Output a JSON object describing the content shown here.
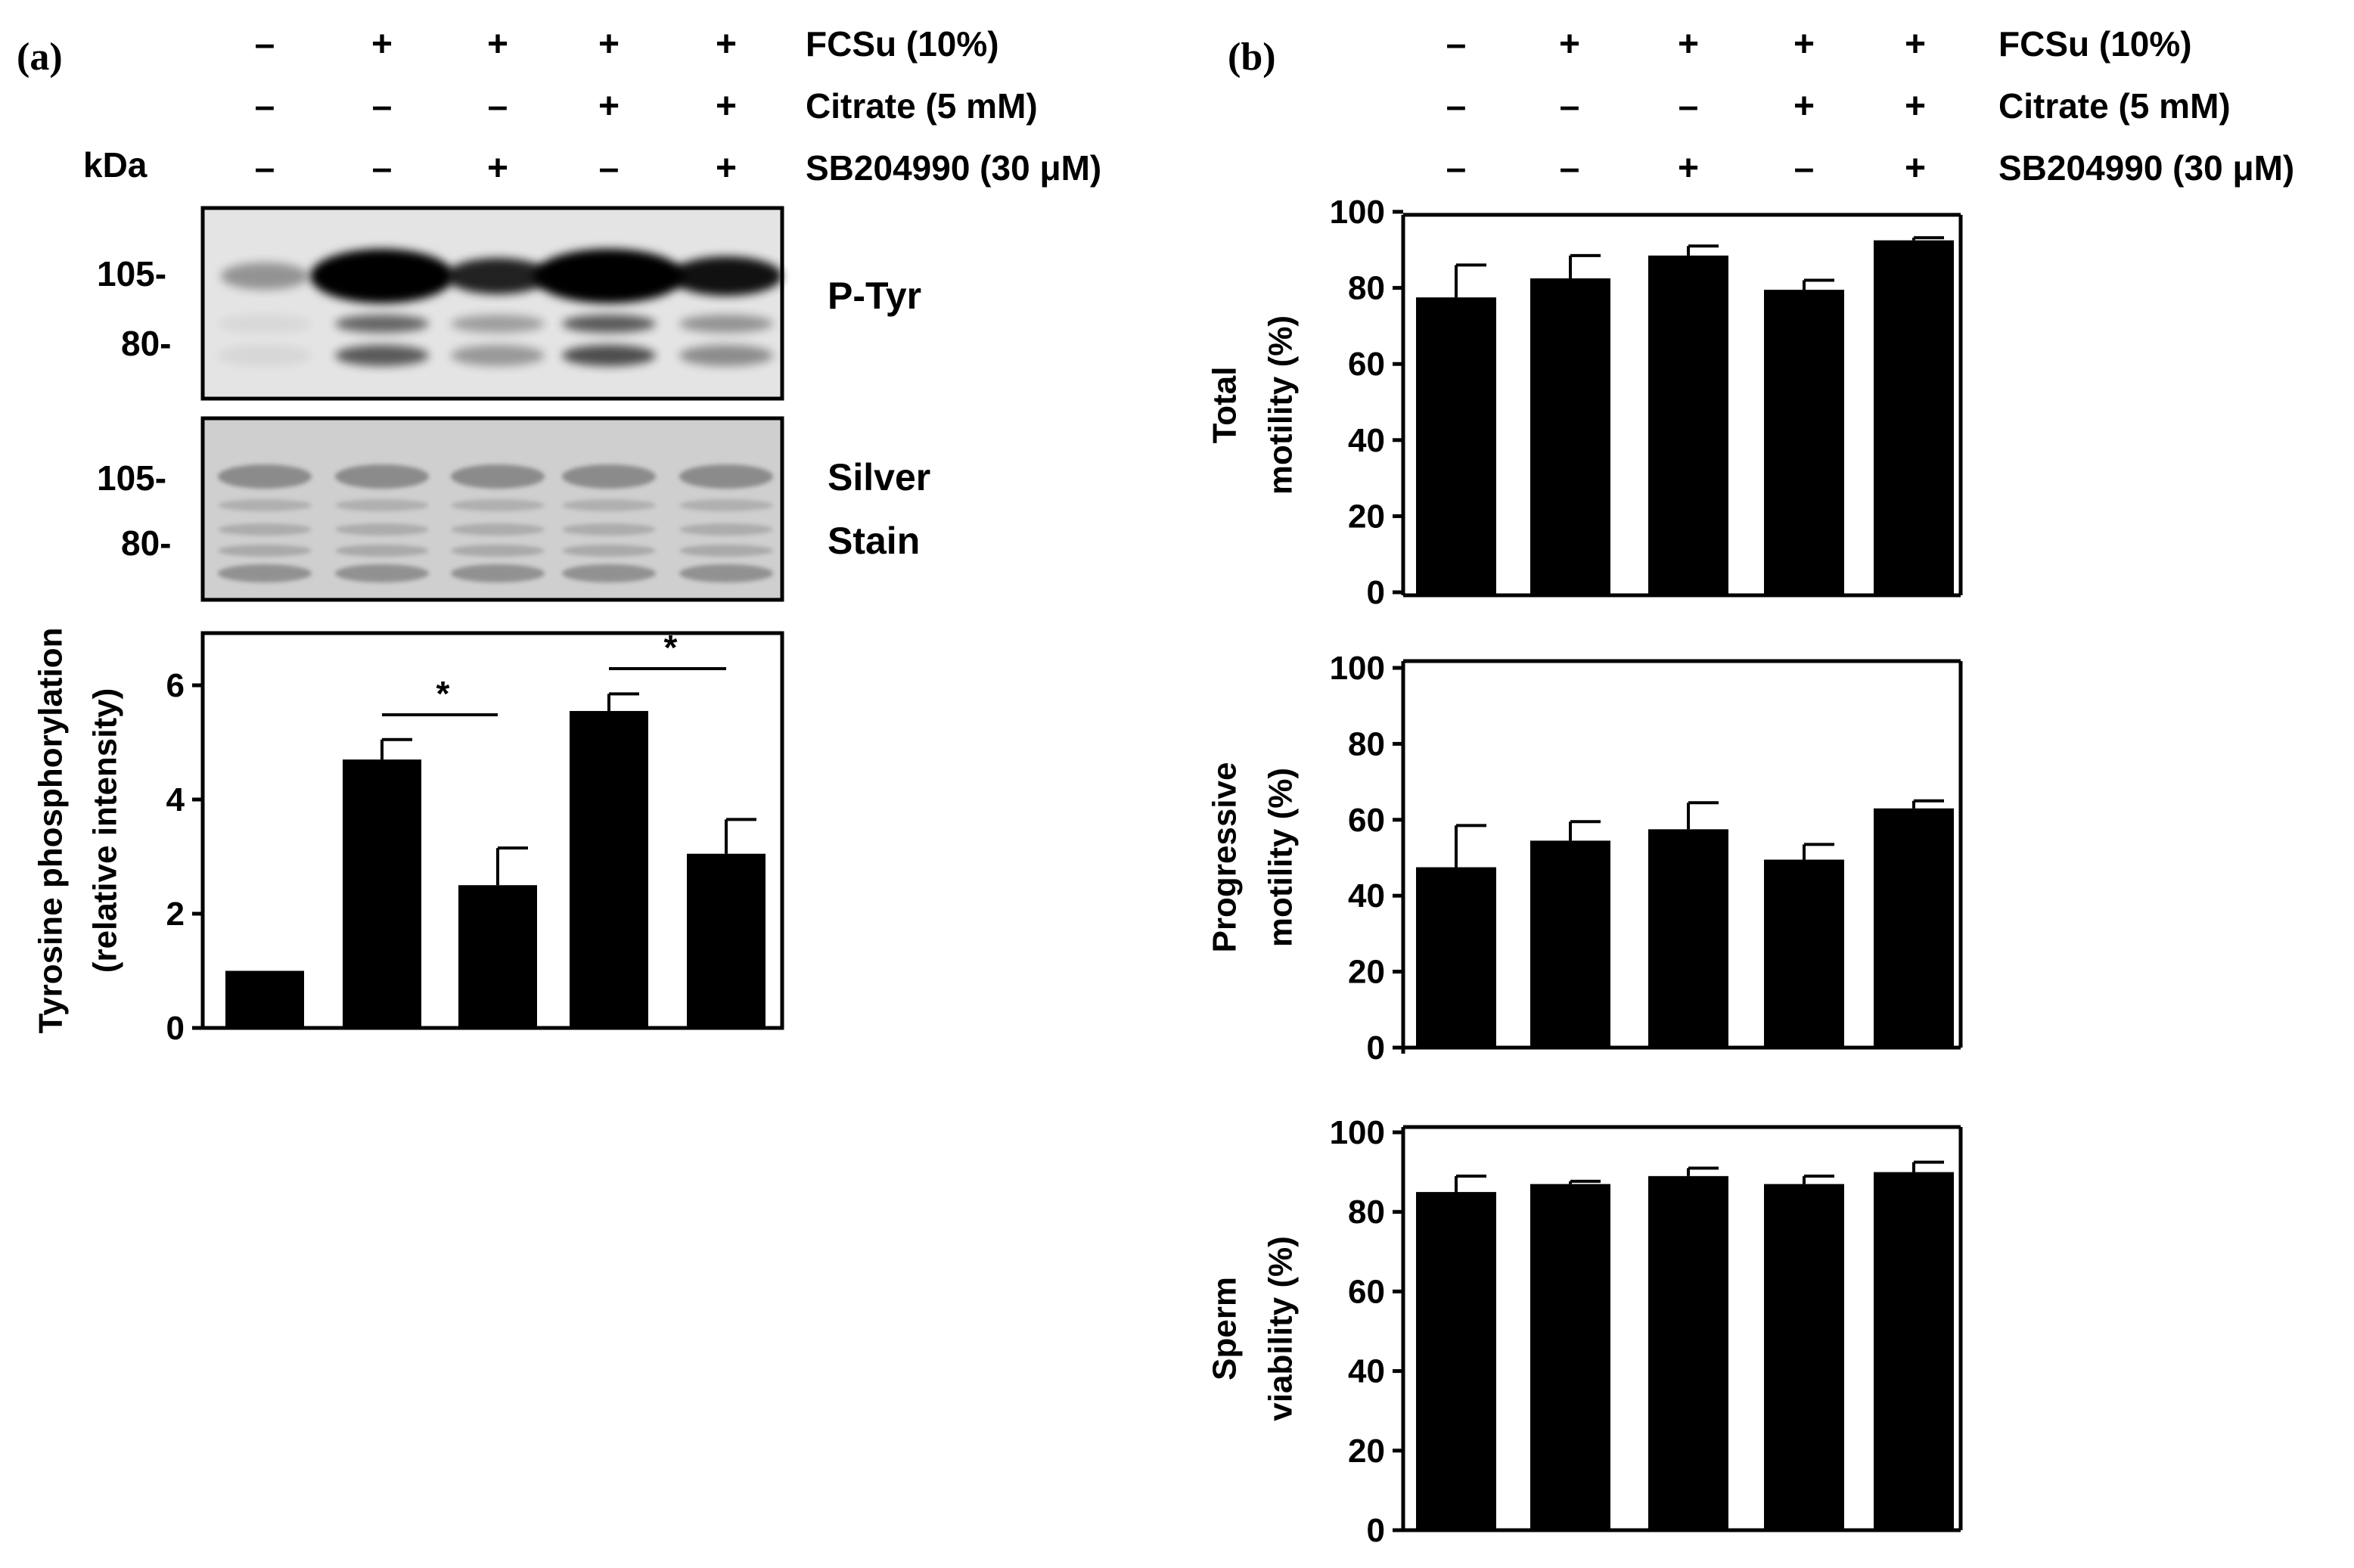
{
  "panel_a_label": "(a)",
  "panel_b_label": "(b)",
  "kda_label": "kDa",
  "treatments": {
    "rows": [
      {
        "label": "FCSu (10%)",
        "signs": [
          "–",
          "+",
          "+",
          "+",
          "+"
        ]
      },
      {
        "label": "Citrate (5 mM)",
        "signs": [
          "–",
          "–",
          "–",
          "+",
          "+"
        ]
      },
      {
        "label": "SB204990 (30 μM)",
        "signs": [
          "–",
          "–",
          "+",
          "–",
          "+"
        ]
      }
    ]
  },
  "blots": {
    "ptyr": {
      "label": "P-Tyr",
      "markers": [
        "105-",
        "80-"
      ]
    },
    "silver": {
      "label_line1": "Silver",
      "label_line2": "Stain",
      "markers": [
        "105-",
        "80-"
      ]
    }
  },
  "colors": {
    "bar": "#000000",
    "axis": "#000000",
    "blot_bg": "#e6e6e6",
    "silver_bg": "#d0d0d0"
  },
  "chart_data": [
    {
      "type": "bar",
      "panel": "a",
      "ylabel_line1": "Tyrosine phosphorylation",
      "ylabel_line2": "(relative intensity)",
      "ylim": [
        0,
        7
      ],
      "yticks": [
        0,
        2,
        4,
        6
      ],
      "values": [
        1.0,
        4.7,
        2.5,
        5.55,
        3.05
      ],
      "errors": [
        0,
        0.35,
        0.65,
        0.3,
        0.6
      ],
      "significance": [
        {
          "from_bar": 2,
          "to_bar": 3,
          "label": "*"
        },
        {
          "from_bar": 4,
          "to_bar": 5,
          "label": "*"
        }
      ]
    },
    {
      "type": "bar",
      "panel": "b",
      "ylabel_line1": "Total",
      "ylabel_line2": "motility (%)",
      "ylim": [
        0,
        100
      ],
      "yticks": [
        0,
        20,
        40,
        60,
        80,
        100
      ],
      "values": [
        77.5,
        82.5,
        88.5,
        79.5,
        92.5
      ],
      "errors": [
        8.5,
        6.0,
        2.5,
        2.5,
        0.7
      ]
    },
    {
      "type": "bar",
      "panel": "b",
      "ylabel_line1": "Progressive",
      "ylabel_line2": "motility (%)",
      "ylim": [
        0,
        100
      ],
      "yticks": [
        0,
        20,
        40,
        60,
        80,
        100
      ],
      "values": [
        47.5,
        54.5,
        57.5,
        49.5,
        63.0
      ],
      "errors": [
        11.0,
        5.0,
        7.0,
        4.0,
        2.0
      ]
    },
    {
      "type": "bar",
      "panel": "b",
      "ylabel_line1": "Sperm",
      "ylabel_line2": "viability (%)",
      "ylim": [
        0,
        100
      ],
      "yticks": [
        0,
        20,
        40,
        60,
        80,
        100
      ],
      "values": [
        85.0,
        87.0,
        89.0,
        87.0,
        90.0
      ],
      "errors": [
        4.0,
        0.7,
        2.0,
        2.0,
        2.5
      ]
    }
  ]
}
